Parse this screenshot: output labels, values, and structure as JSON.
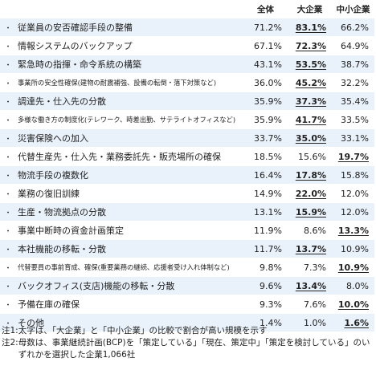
{
  "table": {
    "headers": {
      "all": "全体",
      "large": "大企業",
      "sme": "中小企業"
    },
    "bullet": "・",
    "rows": [
      {
        "label": "従業員の安否確認手段の整備",
        "all": "71.2%",
        "large": "83.1%",
        "sme": "66.2%",
        "hi": "large"
      },
      {
        "label": "情報システムのバックアップ",
        "all": "67.1%",
        "large": "72.3%",
        "sme": "64.9%",
        "hi": "large"
      },
      {
        "label": "緊急時の指揮・命令系統の構築",
        "all": "43.1%",
        "large": "53.5%",
        "sme": "38.7%",
        "hi": "large"
      },
      {
        "label": "事業所の安全性確保(建物の耐震補強、設備の転倒・落下対策など)",
        "all": "36.0%",
        "large": "45.2%",
        "sme": "32.2%",
        "hi": "large",
        "small": true
      },
      {
        "label": "調達先・仕入先の分散",
        "all": "35.9%",
        "large": "37.3%",
        "sme": "35.4%",
        "hi": "large"
      },
      {
        "label": "多様な働き方の制度化(テレワーク、時差出勤、サテライトオフィスなど)",
        "all": "35.9%",
        "large": "41.7%",
        "sme": "33.5%",
        "hi": "large",
        "small": true
      },
      {
        "label": "災害保険への加入",
        "all": "33.7%",
        "large": "35.0%",
        "sme": "33.1%",
        "hi": "large"
      },
      {
        "label": "代替生産先・仕入先・業務委託先・販売場所の確保",
        "all": "18.5%",
        "large": "15.6%",
        "sme": "19.7%",
        "hi": "sme"
      },
      {
        "label": "物流手段の複数化",
        "all": "16.4%",
        "large": "17.8%",
        "sme": "15.8%",
        "hi": "large"
      },
      {
        "label": "業務の復旧訓練",
        "all": "14.9%",
        "large": "22.0%",
        "sme": "12.0%",
        "hi": "large"
      },
      {
        "label": "生産・物流拠点の分散",
        "all": "13.1%",
        "large": "15.9%",
        "sme": "12.0%",
        "hi": "large"
      },
      {
        "label": "事業中断時の資金計画策定",
        "all": "11.9%",
        "large": "8.6%",
        "sme": "13.3%",
        "hi": "sme"
      },
      {
        "label": "本社機能の移転・分散",
        "all": "11.7%",
        "large": "13.7%",
        "sme": "10.9%",
        "hi": "large"
      },
      {
        "label": "代替要員の事前育成、確保(重要業務の継続、応援者受け入れ体制など)",
        "all": "9.8%",
        "large": "7.3%",
        "sme": "10.9%",
        "hi": "sme",
        "small": true
      },
      {
        "label": "バックオフィス(支店)機能の移転・分散",
        "all": "9.6%",
        "large": "13.4%",
        "sme": "8.0%",
        "hi": "large"
      },
      {
        "label": "予備在庫の確保",
        "all": "9.3%",
        "large": "7.6%",
        "sme": "10.0%",
        "hi": "sme"
      },
      {
        "label": "その他",
        "all": "1.4%",
        "large": "1.0%",
        "sme": "1.6%",
        "hi": "sme"
      }
    ]
  },
  "notes": [
    {
      "tag": "注1:",
      "text": "太字は、「大企業」と「中小企業」の比較で割合が高い規模を示す"
    },
    {
      "tag": "注2:",
      "text": "母数は、事業継続計画(BCP)を「策定している」「現在、策定中」「策定を検討している」のいずれかを選択した企業1,066社"
    }
  ],
  "colors": {
    "stripe": "#e9f1fa",
    "text": "#222222"
  }
}
